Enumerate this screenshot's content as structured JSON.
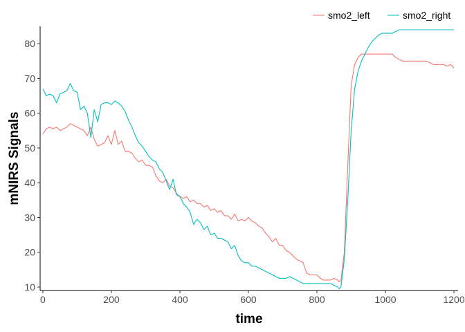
{
  "chart_data": {
    "type": "line",
    "xlabel": "time",
    "ylabel": "mNIRS Signals",
    "xlim": [
      -8,
      1212
    ],
    "ylim": [
      9,
      85
    ],
    "xticks": [
      0,
      200,
      400,
      600,
      800,
      1000,
      1200
    ],
    "yticks": [
      10,
      20,
      30,
      40,
      50,
      60,
      70,
      80
    ],
    "grid": false,
    "legend_position": "top-right",
    "series": [
      {
        "name": "smo2_left",
        "color": "#F8766D",
        "x": [
          0,
          10,
          20,
          30,
          40,
          50,
          60,
          70,
          80,
          90,
          100,
          110,
          120,
          130,
          140,
          150,
          160,
          170,
          180,
          190,
          200,
          210,
          220,
          230,
          240,
          250,
          260,
          270,
          280,
          290,
          300,
          310,
          320,
          330,
          340,
          350,
          360,
          370,
          380,
          390,
          400,
          410,
          420,
          430,
          440,
          450,
          460,
          470,
          480,
          490,
          500,
          510,
          520,
          530,
          540,
          550,
          560,
          570,
          580,
          590,
          600,
          610,
          620,
          630,
          640,
          650,
          660,
          670,
          680,
          690,
          700,
          710,
          720,
          730,
          740,
          750,
          760,
          770,
          780,
          790,
          800,
          810,
          820,
          830,
          840,
          850,
          860,
          865,
          870,
          880,
          890,
          900,
          910,
          920,
          930,
          940,
          950,
          960,
          970,
          980,
          990,
          1000,
          1010,
          1020,
          1030,
          1040,
          1050,
          1060,
          1070,
          1080,
          1090,
          1100,
          1110,
          1120,
          1130,
          1140,
          1150,
          1160,
          1170,
          1180,
          1190,
          1200
        ],
        "y": [
          54,
          55.5,
          56,
          55.5,
          56,
          55,
          55.5,
          56,
          57,
          56.5,
          56,
          55.5,
          55,
          53.5,
          56,
          52.5,
          50.5,
          51,
          51.5,
          53.5,
          51,
          55,
          51,
          52,
          49,
          49,
          48.5,
          47,
          46,
          46.5,
          45,
          45,
          44.5,
          42,
          40.5,
          40,
          41,
          39,
          38.5,
          37,
          36,
          35.5,
          36,
          34.5,
          35,
          34,
          34,
          33,
          33.5,
          32,
          32.5,
          31.5,
          32,
          30.5,
          30.5,
          29.5,
          31,
          29,
          29.5,
          29,
          30,
          29,
          28.5,
          27.5,
          27,
          25.5,
          24.5,
          23,
          24,
          22,
          22,
          20.5,
          20,
          19,
          18,
          17.5,
          17,
          14,
          13.5,
          13.5,
          13.5,
          12.5,
          12,
          12,
          12,
          12.5,
          12,
          11.5,
          12,
          20,
          45,
          68,
          74,
          76,
          77,
          77,
          77,
          77,
          77,
          77,
          77,
          77,
          77,
          77,
          76,
          75.5,
          75,
          75,
          75,
          75,
          75,
          75,
          75,
          75,
          74.5,
          74,
          74,
          74,
          74,
          73.5,
          74,
          73
        ]
      },
      {
        "name": "smo2_right",
        "color": "#00BFC4",
        "x": [
          0,
          10,
          20,
          30,
          40,
          50,
          60,
          70,
          80,
          90,
          100,
          110,
          120,
          130,
          140,
          150,
          160,
          170,
          180,
          190,
          200,
          210,
          220,
          230,
          240,
          250,
          260,
          270,
          280,
          290,
          300,
          310,
          320,
          330,
          340,
          350,
          360,
          370,
          380,
          390,
          400,
          410,
          420,
          430,
          440,
          450,
          460,
          470,
          480,
          490,
          500,
          510,
          520,
          530,
          540,
          550,
          560,
          570,
          580,
          590,
          600,
          610,
          620,
          630,
          640,
          650,
          660,
          670,
          680,
          690,
          700,
          710,
          720,
          730,
          740,
          750,
          760,
          770,
          780,
          790,
          800,
          810,
          820,
          830,
          840,
          850,
          860,
          865,
          870,
          880,
          890,
          900,
          910,
          920,
          930,
          940,
          950,
          960,
          970,
          980,
          990,
          1000,
          1010,
          1020,
          1030,
          1040,
          1050,
          1060,
          1070,
          1080,
          1090,
          1100,
          1110,
          1120,
          1130,
          1140,
          1150,
          1160,
          1170,
          1180,
          1190,
          1200
        ],
        "y": [
          67,
          65,
          65.5,
          65,
          63,
          65.5,
          66,
          66.5,
          68.5,
          66.5,
          66,
          61,
          62,
          60,
          53,
          61,
          57.5,
          62.5,
          63,
          63,
          62.5,
          63.5,
          63,
          62,
          60.5,
          58,
          56,
          53.5,
          51.5,
          50.5,
          49,
          47.5,
          46.5,
          46,
          44,
          43,
          40.5,
          38,
          41,
          36.5,
          36,
          34,
          33,
          31.5,
          28,
          29.5,
          28.5,
          26.5,
          27.5,
          25,
          25.5,
          24,
          24,
          23.5,
          23,
          21,
          22,
          19,
          17.5,
          17,
          17,
          16,
          16,
          15.5,
          15,
          14.5,
          14,
          13.5,
          13,
          12.5,
          12.5,
          12.5,
          13,
          12.5,
          12,
          11.5,
          11,
          11,
          11,
          11,
          11,
          11,
          11,
          11,
          11,
          10.5,
          10,
          9.5,
          10,
          18,
          35,
          55,
          67,
          72,
          75,
          77,
          79,
          80.5,
          81.5,
          82.5,
          83,
          83,
          83,
          83,
          83.5,
          84,
          84,
          84,
          84,
          84,
          84,
          84,
          84,
          84,
          84,
          84,
          84,
          84,
          84,
          84,
          84,
          84
        ]
      }
    ]
  }
}
